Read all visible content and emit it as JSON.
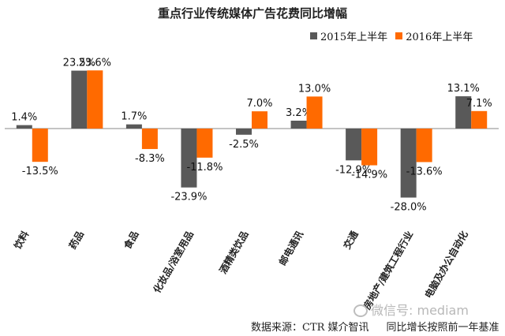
{
  "chart_data": {
    "type": "bar",
    "title": "重点行业传统媒体广告花费同比增幅",
    "categories": [
      "饮料",
      "药品",
      "食品",
      "化妆品/浴室用品",
      "酒精类饮品",
      "邮电通讯",
      "交通",
      "房地产/建筑工程行业",
      "电脑及办公自动化"
    ],
    "series": [
      {
        "name": "2015年上半年",
        "color": "#595959",
        "values": [
          1.4,
          23.5,
          1.7,
          -23.9,
          -2.5,
          3.2,
          -12.9,
          -28.0,
          13.1
        ]
      },
      {
        "name": "2016年上半年",
        "color": "#ff6a00",
        "values": [
          -13.5,
          23.6,
          -8.3,
          -11.8,
          7.0,
          13.0,
          -14.9,
          -13.6,
          7.1
        ]
      }
    ],
    "value_suffix": "%",
    "ylim": [
      -30,
      26
    ],
    "legend_position": "top-right",
    "grid": false
  },
  "footer": {
    "source": "数据来源：CTR 媒介智讯",
    "note": "同比增长按照前一年基准"
  },
  "watermark": {
    "text": "微信号: mediam"
  }
}
